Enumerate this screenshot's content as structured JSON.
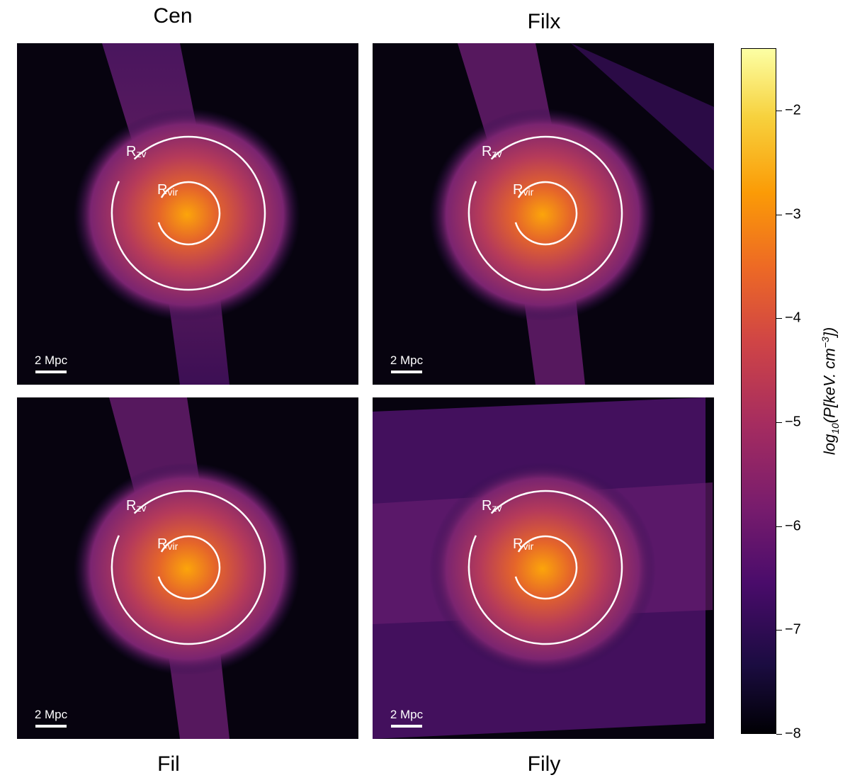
{
  "panels": [
    {
      "title": "Cen",
      "scale_label": "2 Mpc",
      "label_outer": "R",
      "label_outer_sub": "zv",
      "label_inner": "R",
      "label_inner_sub": "vir"
    },
    {
      "title": "Filx",
      "scale_label": "2 Mpc",
      "label_outer": "R",
      "label_outer_sub": "zv",
      "label_inner": "R",
      "label_inner_sub": "vir"
    },
    {
      "title": "Fil",
      "scale_label": "2 Mpc",
      "label_outer": "R",
      "label_outer_sub": "zv",
      "label_inner": "R",
      "label_inner_sub": "vir"
    },
    {
      "title": "Fily",
      "scale_label": "2 Mpc",
      "label_outer": "R",
      "label_outer_sub": "zv",
      "label_inner": "R",
      "label_inner_sub": "vir"
    }
  ],
  "colorbar": {
    "label": "log10(P[keV. cm^-3])",
    "label_main": "log",
    "label_sub": "10",
    "label_rest": "(P[keV. cm",
    "label_sup": "−3",
    "label_end": "])",
    "ticks": [
      "−2",
      "−3",
      "−4",
      "−5",
      "−6",
      "−7",
      "−8"
    ],
    "range": [
      -8,
      -1.4
    ],
    "colormap": "inferno"
  }
}
